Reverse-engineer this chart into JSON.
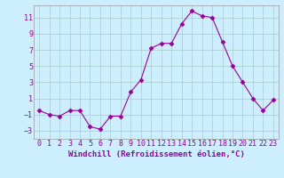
{
  "x": [
    0,
    1,
    2,
    3,
    4,
    5,
    6,
    7,
    8,
    9,
    10,
    11,
    12,
    13,
    14,
    15,
    16,
    17,
    18,
    19,
    20,
    21,
    22,
    23
  ],
  "y": [
    -0.5,
    -1.0,
    -1.2,
    -0.5,
    -0.5,
    -2.5,
    -2.8,
    -1.2,
    -1.2,
    1.8,
    3.3,
    7.2,
    7.8,
    7.8,
    10.2,
    11.8,
    11.2,
    11.0,
    8.0,
    5.0,
    3.0,
    1.0,
    -0.5,
    0.8
  ],
  "line_color": "#990099",
  "marker": "D",
  "markersize": 2.5,
  "linewidth": 0.8,
  "xlabel": "Windchill (Refroidissement éolien,°C)",
  "xlabel_fontsize": 6.5,
  "bg_color": "#cceeff",
  "grid_color": "#aacccc",
  "yticks": [
    -3,
    -1,
    1,
    3,
    5,
    7,
    9,
    11
  ],
  "xticks": [
    0,
    1,
    2,
    3,
    4,
    5,
    6,
    7,
    8,
    9,
    10,
    11,
    12,
    13,
    14,
    15,
    16,
    17,
    18,
    19,
    20,
    21,
    22,
    23
  ],
  "ylim": [
    -4,
    12.5
  ],
  "xlim": [
    -0.5,
    23.5
  ],
  "tick_fontsize": 6,
  "tick_color": "#990099",
  "spine_color": "#999999"
}
